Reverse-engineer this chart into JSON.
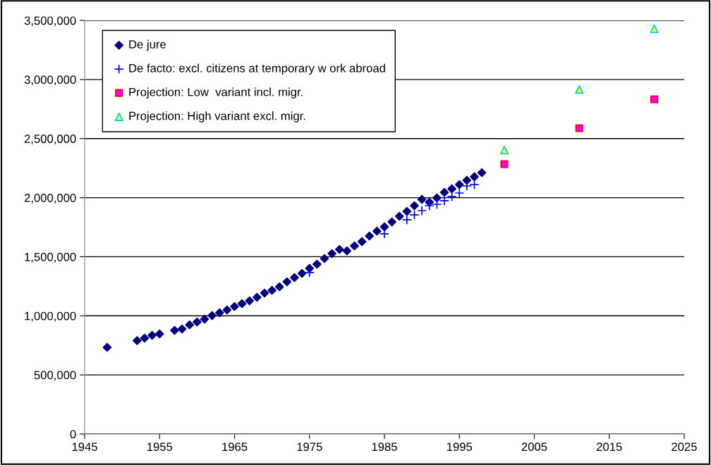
{
  "chart_data": {
    "type": "scatter",
    "xlim": [
      1945,
      2025
    ],
    "xticks": [
      1945,
      1955,
      1965,
      1975,
      1985,
      1995,
      2005,
      2015,
      2025
    ],
    "ylim": [
      0,
      3500000
    ],
    "yticks": [
      {
        "value": 0,
        "label": "0"
      },
      {
        "value": 500000,
        "label": "500,000"
      },
      {
        "value": 1000000,
        "label": "1,000,000"
      },
      {
        "value": 1500000,
        "label": "1,500,000"
      },
      {
        "value": 2000000,
        "label": "2,000,000"
      },
      {
        "value": 2500000,
        "label": "2,500,000"
      },
      {
        "value": 3000000,
        "label": "3,000,000"
      },
      {
        "value": 3500000,
        "label": "3,500,000"
      }
    ],
    "grid": "y",
    "legend": "top left",
    "series": [
      {
        "name": "De jure",
        "color": "#000080",
        "marker": "diamond",
        "x": [
          1948,
          1952,
          1953,
          1954,
          1955,
          1957,
          1958,
          1959,
          1960,
          1961,
          1962,
          1963,
          1964,
          1965,
          1966,
          1967,
          1968,
          1969,
          1970,
          1971,
          1972,
          1973,
          1974,
          1975,
          1976,
          1977,
          1978,
          1979,
          1980,
          1981,
          1982,
          1983,
          1984,
          1985,
          1986,
          1987,
          1988,
          1989,
          1990,
          1991,
          1992,
          1993,
          1994,
          1995,
          1996,
          1997,
          1998
        ],
        "values": [
          733000,
          790000,
          811000,
          835000,
          847000,
          877000,
          889000,
          924000,
          948000,
          972000,
          1002000,
          1026000,
          1050000,
          1079000,
          1103000,
          1127000,
          1157000,
          1193000,
          1216000,
          1246000,
          1288000,
          1324000,
          1360000,
          1402000,
          1437000,
          1485000,
          1527000,
          1562000,
          1550000,
          1592000,
          1628000,
          1676000,
          1717000,
          1753000,
          1795000,
          1843000,
          1884000,
          1932000,
          1986000,
          1962000,
          1998000,
          2045000,
          2075000,
          2111000,
          2147000,
          2177000,
          2212000
        ]
      },
      {
        "name": "De facto: excl. citizens at temporary w ork abroad",
        "color": "#0000ff",
        "marker": "cross",
        "x": [
          1975,
          1985,
          1988,
          1989,
          1990,
          1991,
          1992,
          1993,
          1994,
          1995,
          1996,
          1997
        ],
        "values": [
          1366000,
          1694000,
          1813000,
          1855000,
          1890000,
          1932000,
          1944000,
          1974000,
          2010000,
          2039000,
          2099000,
          2111000
        ]
      },
      {
        "name": "Projection: Low  variant incl. migr.",
        "color": "#ff00ff",
        "marker": "square",
        "x": [
          2001,
          2011,
          2021
        ],
        "values": [
          2284000,
          2588000,
          2832000
        ]
      },
      {
        "name": "Projection: High variant excl. migr.",
        "color": "#ffff00",
        "marker": "triangle",
        "x": [
          2001,
          2011,
          2021
        ],
        "values": [
          2403000,
          2916000,
          3429000
        ]
      }
    ]
  }
}
